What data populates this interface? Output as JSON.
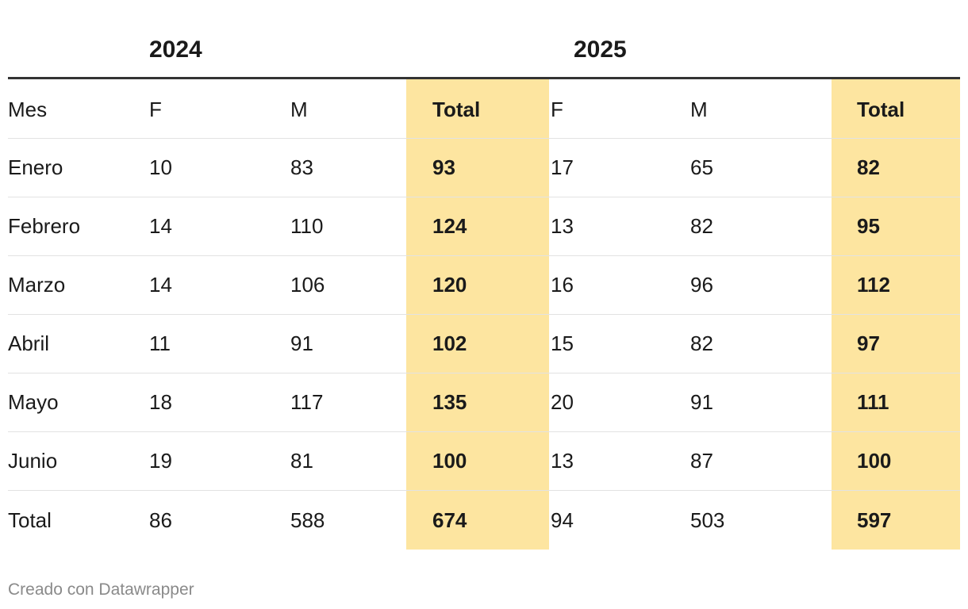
{
  "chart_data": {
    "type": "table",
    "group_headers": [
      "2024",
      "2025"
    ],
    "columns": [
      "Mes",
      "F",
      "M",
      "Total",
      "F",
      "M",
      "Total"
    ],
    "rows": [
      [
        "Enero",
        "10",
        "83",
        "93",
        "17",
        "65",
        "82"
      ],
      [
        "Febrero",
        "14",
        "110",
        "124",
        "13",
        "82",
        "95"
      ],
      [
        "Marzo",
        "14",
        "106",
        "120",
        "16",
        "96",
        "112"
      ],
      [
        "Abril",
        "11",
        "91",
        "102",
        "15",
        "82",
        "97"
      ],
      [
        "Mayo",
        "18",
        "117",
        "135",
        "20",
        "91",
        "111"
      ],
      [
        "Junio",
        "19",
        "81",
        "100",
        "13",
        "87",
        "100"
      ],
      [
        "Total",
        "86",
        "588",
        "674",
        "94",
        "503",
        "597"
      ]
    ],
    "highlight_color": "#fde5a0"
  },
  "footer": {
    "credit": "Creado con Datawrapper"
  }
}
